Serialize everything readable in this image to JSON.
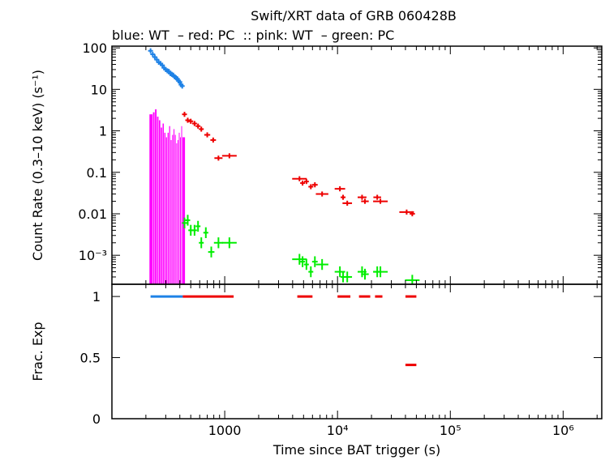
{
  "title": "Swift/XRT data of GRB 060428B",
  "subtitle": "blue: WT  – red: PC  :: pink: WT  – green: PC",
  "colors": {
    "wt": "#1e82e6",
    "pc": "#ee0000",
    "pink": "#ff00ff",
    "green": "#00ee00",
    "axis": "#000000"
  },
  "chart_data": [
    {
      "type": "scatter",
      "title": "Swift/XRT data of GRB 060428B",
      "xlabel": "",
      "ylabel": "Count Rate (0.3–10 keV) (s⁻¹)",
      "xscale": "log",
      "yscale": "log",
      "xlim": [
        100,
        2200000
      ],
      "ylim": [
        0.0002,
        110
      ],
      "yticks": [
        0.001,
        0.01,
        0.1,
        1,
        10,
        100
      ],
      "yticklabels": [
        "10⁻³",
        "0.01",
        "0.1",
        "1",
        "10",
        "100"
      ],
      "series": [
        {
          "name": "blue: WT",
          "color": "#1e82e6",
          "x": [
            220,
            230,
            240,
            250,
            260,
            270,
            280,
            290,
            300,
            310,
            320,
            330,
            340,
            350,
            360,
            370,
            380,
            390,
            400,
            410,
            420
          ],
          "y": [
            85,
            70,
            60,
            52,
            45,
            42,
            38,
            33,
            30,
            28,
            27,
            24,
            23,
            22,
            20,
            19,
            18,
            16,
            15,
            13,
            12
          ]
        },
        {
          "name": "red: PC",
          "color": "#ee0000",
          "x": [
            440,
            470,
            500,
            540,
            580,
            620,
            700,
            790,
            880,
            1100,
            4600,
            4900,
            5300,
            5800,
            6300,
            7300,
            10500,
            11200,
            12200,
            16500,
            17500,
            22500,
            24000,
            41000,
            46000
          ],
          "y": [
            2.5,
            1.8,
            1.7,
            1.5,
            1.3,
            1.1,
            0.8,
            0.6,
            0.22,
            0.25,
            0.07,
            0.055,
            0.06,
            0.045,
            0.05,
            0.03,
            0.04,
            0.025,
            0.018,
            0.025,
            0.02,
            0.025,
            0.02,
            0.011,
            0.01
          ]
        },
        {
          "name": "pink: WT",
          "color": "#ff00ff",
          "x": [
            225,
            235,
            245,
            255,
            265,
            275,
            285,
            295,
            305,
            315,
            325,
            335,
            345,
            355,
            365,
            375,
            385,
            395,
            405,
            415,
            425
          ],
          "y": [
            2.5,
            2.8,
            3.3,
            2.2,
            1.8,
            1.2,
            1.5,
            0.9,
            0.7,
            0.9,
            1.3,
            0.6,
            0.8,
            1.1,
            0.8,
            0.5,
            0.6,
            0.9,
            0.7,
            1.3,
            0.7
          ]
        },
        {
          "name": "green: PC",
          "color": "#00ee00",
          "x": [
            440,
            470,
            500,
            540,
            580,
            620,
            680,
            760,
            880,
            1100,
            4600,
            4900,
            5300,
            5800,
            6300,
            7300,
            10500,
            11200,
            12200,
            16500,
            17500,
            22500,
            24000,
            46000
          ],
          "y": [
            0.006,
            0.007,
            0.004,
            0.004,
            0.005,
            0.002,
            0.0035,
            0.0012,
            0.002,
            0.002,
            0.0008,
            0.0007,
            0.0006,
            0.0004,
            0.0007,
            0.0006,
            0.0004,
            0.0003,
            0.0003,
            0.0004,
            0.00035,
            0.0004,
            0.0004,
            0.00025
          ]
        }
      ]
    },
    {
      "type": "scatter",
      "title": "",
      "xlabel": "Time since BAT trigger (s)",
      "ylabel": "Frac. Exp",
      "xscale": "log",
      "xlim": [
        100,
        2200000
      ],
      "ylim": [
        0,
        1.1
      ],
      "yticks": [
        0,
        0.5,
        1
      ],
      "yticklabels": [
        "0",
        "0.5",
        "1"
      ],
      "xticks": [
        1000,
        10000,
        100000,
        1000000
      ],
      "xticklabels": [
        "1000",
        "10⁴",
        "10⁵",
        "10⁶"
      ],
      "series": [
        {
          "name": "blue: WT",
          "color": "#1e82e6",
          "x": [
            [
              220,
              425
            ]
          ],
          "y": [
            1
          ]
        },
        {
          "name": "red: PC",
          "color": "#ee0000",
          "x": [
            [
              425,
              1200
            ],
            [
              4400,
              6000
            ],
            [
              10000,
              13000
            ],
            [
              15500,
              19500
            ],
            [
              21500,
              25000
            ],
            [
              40000,
              50000
            ],
            [
              40000,
              50000
            ]
          ],
          "y": [
            1,
            1,
            1,
            1,
            1,
            1,
            0.44
          ]
        }
      ]
    }
  ]
}
